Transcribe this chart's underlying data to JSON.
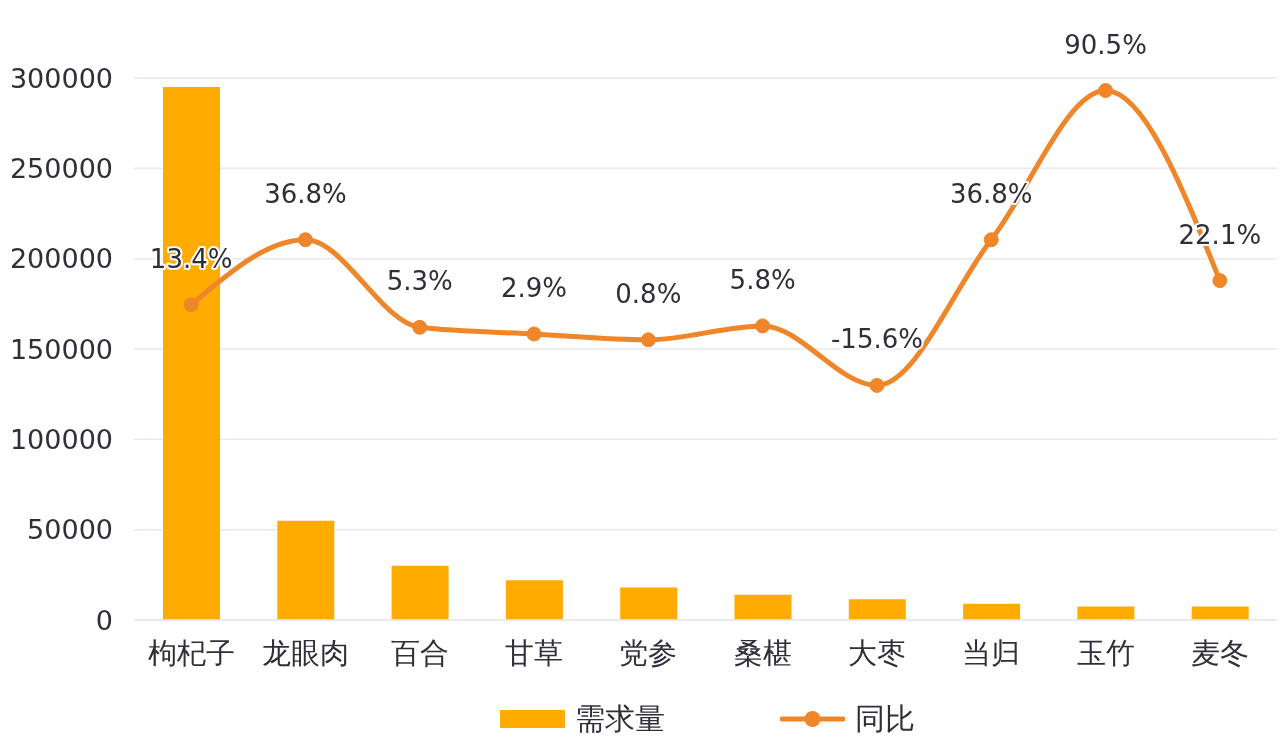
{
  "chart_data": {
    "type": "bar",
    "categories": [
      "枸杞子",
      "龙眼肉",
      "百合",
      "甘草",
      "党参",
      "桑椹",
      "大枣",
      "当归",
      "玉竹",
      "麦冬"
    ],
    "series": [
      {
        "name": "需求量",
        "color": "#ffab00",
        "values": [
          295000,
          55000,
          30000,
          22000,
          18000,
          14000,
          11500,
          9000,
          7500,
          7500
        ]
      },
      {
        "name": "同比",
        "type": "line",
        "axis": "y2",
        "color": "#f0862a",
        "values": [
          13.4,
          36.8,
          5.3,
          2.9,
          0.8,
          5.8,
          -15.6,
          36.8,
          90.5,
          22.1
        ],
        "value_labels": [
          "13.4%",
          "36.8%",
          "5.3%",
          "2.9%",
          "0.8%",
          "5.8%",
          "-15.6%",
          "36.8%",
          "90.5%",
          "22.1%"
        ]
      }
    ],
    "ylim": [
      0,
      300000
    ],
    "yticks": [
      0,
      50000,
      100000,
      150000,
      200000,
      250000,
      300000
    ],
    "y2lim": [
      -100,
      95
    ],
    "grid": "y",
    "legend": "bottom",
    "marker": "circle"
  }
}
